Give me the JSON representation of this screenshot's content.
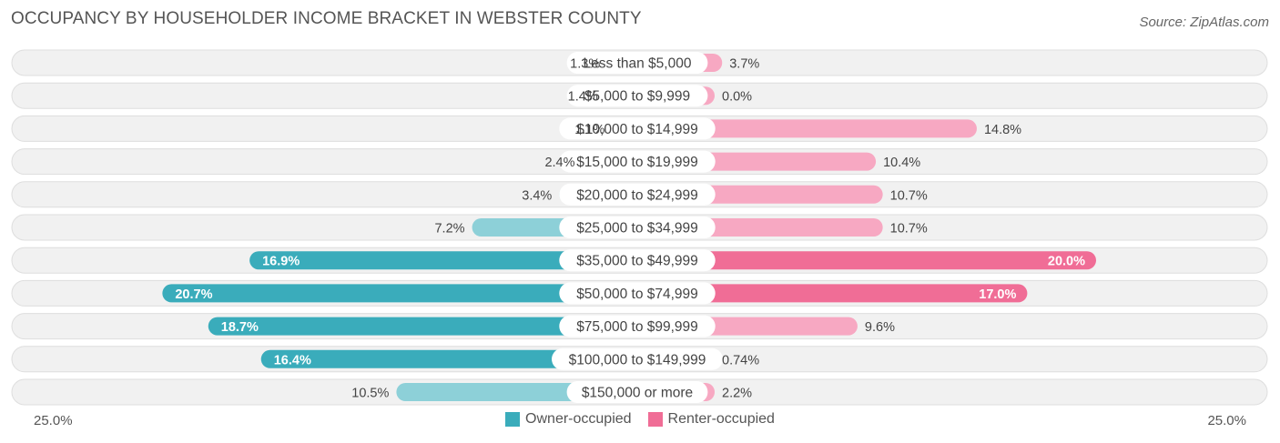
{
  "chart_data": {
    "type": "bar",
    "title": "OCCUPANCY BY HOUSEHOLDER INCOME BRACKET IN WEBSTER COUNTY",
    "source": "Source: ZipAtlas.com",
    "categories": [
      "Less than $5,000",
      "$5,000 to $9,999",
      "$10,000 to $14,999",
      "$15,000 to $19,999",
      "$20,000 to $24,999",
      "$25,000 to $34,999",
      "$35,000 to $49,999",
      "$50,000 to $74,999",
      "$75,000 to $99,999",
      "$100,000 to $149,999",
      "$150,000 or more"
    ],
    "series": [
      {
        "name": "Owner-occupied",
        "color": "#3aacbb",
        "values": [
          1.3,
          1.4,
          1.1,
          2.4,
          3.4,
          7.2,
          16.9,
          20.7,
          18.7,
          16.4,
          10.5
        ],
        "labels": [
          "1.3%",
          "1.4%",
          "1.1%",
          "2.4%",
          "3.4%",
          "7.2%",
          "16.9%",
          "20.7%",
          "18.7%",
          "16.4%",
          "10.5%"
        ]
      },
      {
        "name": "Renter-occupied",
        "color": "#f06d96",
        "values": [
          3.7,
          0.0,
          14.8,
          10.4,
          10.7,
          10.7,
          20.0,
          17.0,
          9.6,
          0.74,
          2.2
        ],
        "labels": [
          "3.7%",
          "0.0%",
          "14.8%",
          "10.4%",
          "10.7%",
          "10.7%",
          "20.0%",
          "17.0%",
          "9.6%",
          "0.74%",
          "2.2%"
        ]
      }
    ],
    "axis": {
      "min": 0,
      "max": 25,
      "left_label": "25.0%",
      "right_label": "25.0%"
    },
    "legend": [
      "Owner-occupied",
      "Renter-occupied"
    ]
  }
}
